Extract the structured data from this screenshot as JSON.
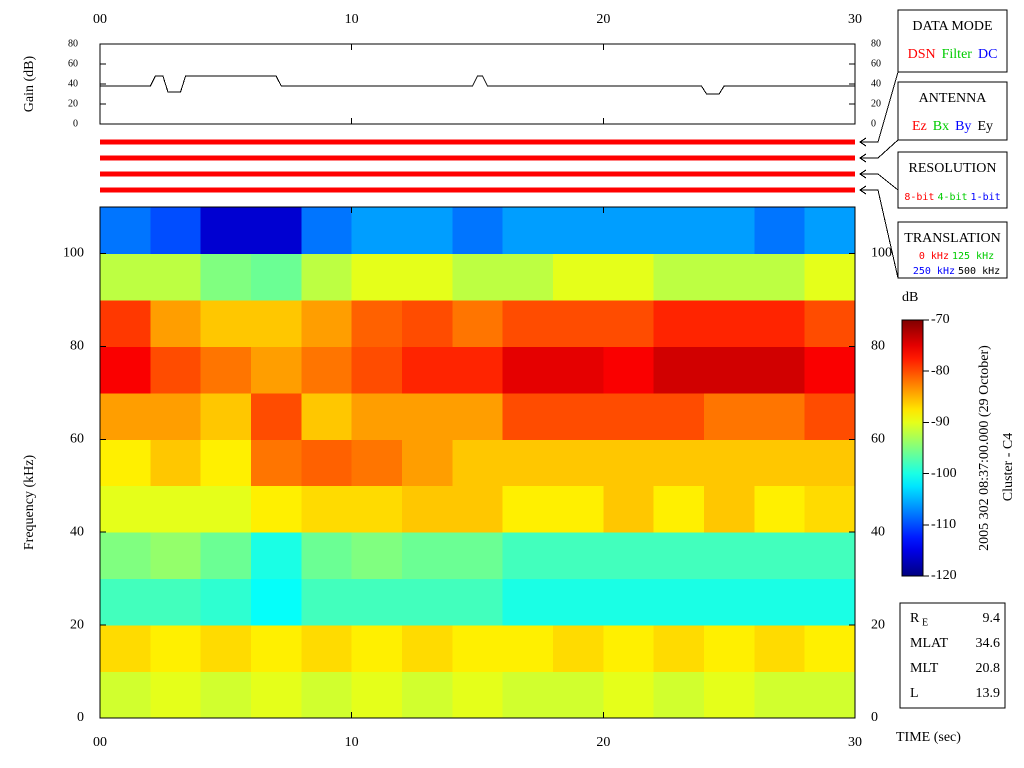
{
  "chart_data": [
    {
      "type": "line",
      "y_label": "Gain (dB)",
      "color": "#000000",
      "x": [
        0,
        2.0,
        2.2,
        2.5,
        2.7,
        3.2,
        3.4,
        7.0,
        7.2,
        14.8,
        15.0,
        15.2,
        15.4,
        23.9,
        24.1,
        24.6,
        24.8,
        30
      ],
      "values": [
        38,
        38,
        48,
        48,
        32,
        32,
        48,
        48,
        38,
        38,
        48,
        48,
        38,
        38,
        30,
        30,
        38,
        38
      ],
      "xlim": [
        0,
        30
      ],
      "xticks": [
        {
          "value": 0,
          "label": "00"
        },
        10,
        20,
        30
      ],
      "ylim": [
        0,
        80
      ],
      "yticks": [
        0,
        20,
        40,
        60,
        80
      ]
    },
    {
      "type": "heatmap",
      "x_label": "TIME (sec)",
      "y_label": "Frequency (kHz)",
      "colormap": "jet",
      "x_bins": [
        0,
        2,
        4,
        6,
        8,
        10,
        12,
        14,
        16,
        18,
        20,
        22,
        24,
        26,
        28,
        30
      ],
      "y_bins": [
        0,
        10,
        20,
        30,
        40,
        50,
        60,
        70,
        80,
        90,
        100,
        110
      ],
      "z": [
        [
          -91,
          -90,
          -91,
          -90,
          -91,
          -90,
          -91,
          -90,
          -91,
          -91,
          -90,
          -91,
          -90,
          -91,
          -91
        ],
        [
          -87,
          -88,
          -87,
          -88,
          -87,
          -88,
          -87,
          -88,
          -88,
          -87,
          -88,
          -87,
          -88,
          -87,
          -88
        ],
        [
          -98,
          -98,
          -99,
          -101,
          -98,
          -98,
          -98,
          -98,
          -100,
          -100,
          -100,
          -100,
          -100,
          -100,
          -100
        ],
        [
          -95,
          -94,
          -96,
          -100,
          -96,
          -95,
          -96,
          -96,
          -98,
          -98,
          -98,
          -98,
          -98,
          -98,
          -98
        ],
        [
          -90,
          -90,
          -90,
          -88,
          -87,
          -87,
          -86,
          -86,
          -88,
          -88,
          -86,
          -88,
          -86,
          -88,
          -87
        ],
        [
          -88,
          -86,
          -88,
          -82,
          -81,
          -82,
          -84,
          -86,
          -86,
          -86,
          -86,
          -86,
          -86,
          -86,
          -86
        ],
        [
          -84,
          -84,
          -86,
          -80,
          -86,
          -84,
          -84,
          -84,
          -80,
          -80,
          -80,
          -80,
          -82,
          -82,
          -80
        ],
        [
          -76,
          -80,
          -82,
          -84,
          -82,
          -80,
          -78,
          -78,
          -75,
          -75,
          -76,
          -74,
          -74,
          -74,
          -76
        ],
        [
          -79,
          -84,
          -86,
          -86,
          -84,
          -81,
          -80,
          -82,
          -80,
          -80,
          -80,
          -78,
          -78,
          -78,
          -80
        ],
        [
          -92,
          -92,
          -95,
          -96,
          -92,
          -90,
          -90,
          -92,
          -92,
          -90,
          -90,
          -92,
          -92,
          -92,
          -90
        ],
        [
          -108,
          -110,
          -116,
          -116,
          -108,
          -106,
          -106,
          -108,
          -106,
          -106,
          -106,
          -106,
          -106,
          -108,
          -106
        ]
      ],
      "xlim": [
        0,
        30
      ],
      "xticks": [
        {
          "value": 0,
          "label": "00"
        },
        10,
        20,
        30
      ],
      "ylim": [
        0,
        110
      ],
      "yticks": [
        0,
        20,
        40,
        60,
        80,
        100
      ],
      "colorbar": {
        "label": "dB",
        "zlim": [
          -120,
          -70
        ],
        "ticks": [
          -70,
          -80,
          -90,
          -100,
          -110,
          -120
        ]
      }
    }
  ],
  "status_bar_colors": [
    "#ff0000",
    "#ff0000",
    "#ff0000",
    "#ff0000"
  ],
  "legend_boxes": [
    {
      "title": "DATA MODE",
      "rows": [
        [
          {
            "text": "DSN",
            "color": "#ff0000"
          },
          {
            "text": "Filter",
            "color": "#00cc00"
          },
          {
            "text": "DC",
            "color": "#0000ff"
          }
        ]
      ]
    },
    {
      "title": "ANTENNA",
      "rows": [
        [
          {
            "text": "Ez",
            "color": "#ff0000"
          },
          {
            "text": "Bx",
            "color": "#00cc00"
          },
          {
            "text": "By",
            "color": "#0000ff"
          },
          {
            "text": "Ey",
            "color": "#000000"
          }
        ]
      ]
    },
    {
      "title": "RESOLUTION",
      "rows": [
        [
          {
            "text": "8-bit",
            "color": "#ff0000"
          },
          {
            "text": "4-bit",
            "color": "#00cc00"
          },
          {
            "text": "1-bit",
            "color": "#0000ff"
          }
        ]
      ]
    },
    {
      "title": "TRANSLATION",
      "rows": [
        [
          {
            "text": "0 kHz",
            "color": "#ff0000"
          },
          {
            "text": "125 kHz",
            "color": "#00cc00"
          }
        ],
        [
          {
            "text": "250 kHz",
            "color": "#0000ff"
          },
          {
            "text": "500 kHz",
            "color": "#000000"
          }
        ]
      ]
    }
  ],
  "caption": [
    "2005 302 08:37:00.000 (29 October)",
    "Cluster - C4"
  ],
  "info": [
    {
      "label": "R",
      "sub": "E",
      "value": 9.4
    },
    {
      "label": "MLAT",
      "value": 34.6
    },
    {
      "label": "MLT",
      "value": 20.8
    },
    {
      "label": "L",
      "value": 13.9
    }
  ]
}
